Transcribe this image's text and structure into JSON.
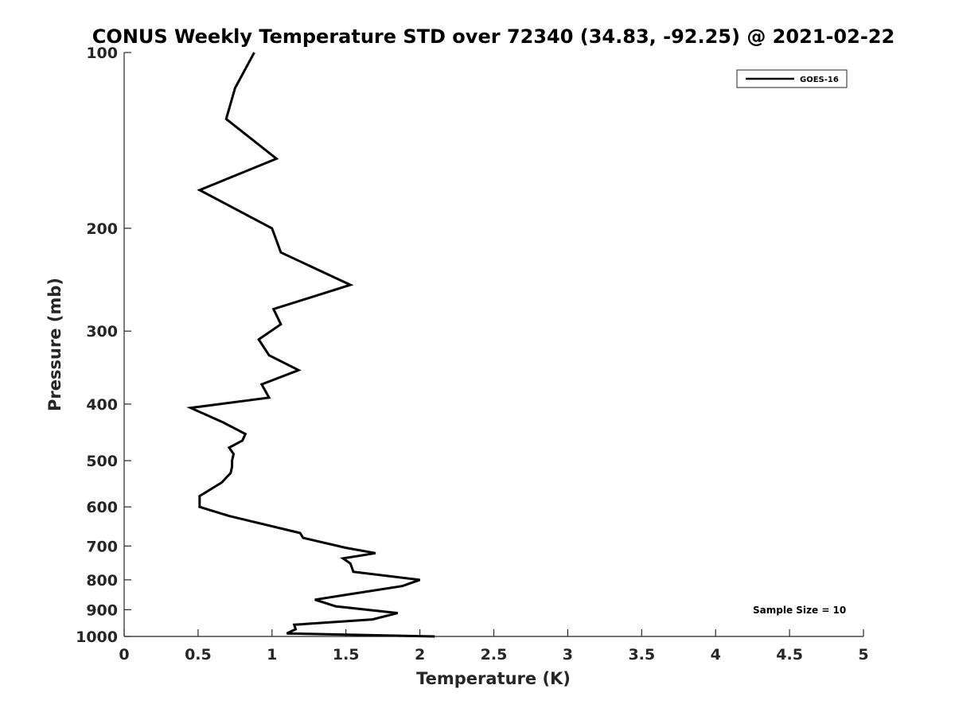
{
  "chart_data": {
    "type": "line",
    "title": "CONUS Weekly Temperature STD over 72340 (34.83, -92.25) @ 2021-02-22",
    "xlabel": "Temperature (K)",
    "ylabel": "Pressure (mb)",
    "xlim": [
      0,
      5
    ],
    "ylim": [
      100,
      1000
    ],
    "y_scale": "log",
    "y_reversed": true,
    "x_ticks": [
      "0",
      "0.5",
      "1",
      "1.5",
      "2",
      "2.5",
      "3",
      "3.5",
      "4",
      "4.5",
      "5"
    ],
    "y_ticks": [
      "100",
      "200",
      "300",
      "400",
      "500",
      "600",
      "700",
      "800",
      "900",
      "1000"
    ],
    "grid": false,
    "legend_position": "top-right",
    "annotation": "Sample Size = 10",
    "series": [
      {
        "name": "GOES-16",
        "color": "#000000",
        "x": [
          0.88,
          0.75,
          0.69,
          1.03,
          0.51,
          1.0,
          1.06,
          1.53,
          1.01,
          1.06,
          0.91,
          0.98,
          1.18,
          0.93,
          0.98,
          0.45,
          0.67,
          0.82,
          0.8,
          0.71,
          0.74,
          0.73,
          0.73,
          0.72,
          0.66,
          0.51,
          0.51,
          0.71,
          1.19,
          1.21,
          1.5,
          1.7,
          1.48,
          1.53,
          1.55,
          2.0,
          1.88,
          1.51,
          1.29,
          1.43,
          1.85,
          1.68,
          1.15,
          1.16,
          1.1,
          2.1
        ],
        "y": [
          100,
          115,
          130,
          152,
          172,
          200,
          220,
          250,
          275,
          292,
          310,
          330,
          350,
          370,
          390,
          406,
          430,
          450,
          462,
          475,
          487,
          500,
          512,
          525,
          545,
          575,
          600,
          622,
          665,
          678,
          705,
          720,
          735,
          750,
          775,
          800,
          820,
          848,
          865,
          888,
          912,
          935,
          955,
          972,
          988,
          1000
        ]
      }
    ]
  }
}
